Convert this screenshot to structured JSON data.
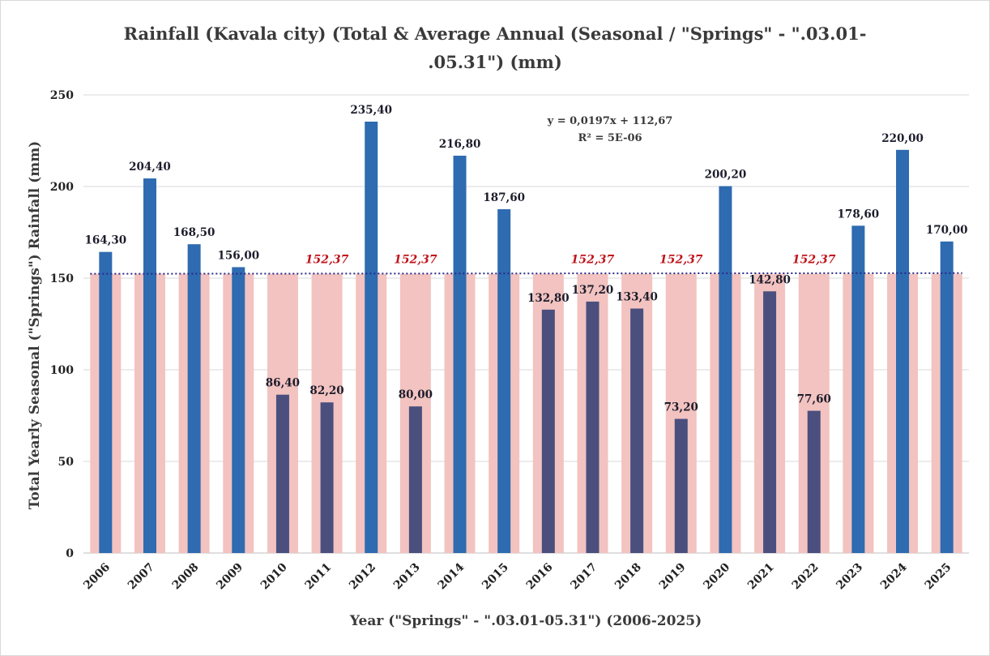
{
  "chart_data": {
    "type": "bar",
    "title_line1": "Rainfall (Kavala city) (Total & Average Annual (Seasonal / \"Springs\" - \".03.01-",
    "title_line2": ".05.31\") (mm)",
    "xlabel": "Year (\"Springs\" - \".03.01-05.31\") (2006-2025)",
    "ylabel": "Total Yearly Seasonal (\"Springs\") Rainfall (mm)",
    "ylim": [
      0,
      250
    ],
    "yticks": [
      0,
      50,
      100,
      150,
      200,
      250
    ],
    "grid": true,
    "categories": [
      "2006",
      "2007",
      "2008",
      "2009",
      "2010",
      "2011",
      "2012",
      "2013",
      "2014",
      "2015",
      "2016",
      "2017",
      "2018",
      "2019",
      "2020",
      "2021",
      "2022",
      "2023",
      "2024",
      "2025"
    ],
    "series": [
      {
        "values": [
          164.3,
          204.4,
          168.5,
          156.0,
          86.4,
          82.2,
          235.4,
          80.0,
          216.8,
          187.6,
          132.8,
          137.2,
          133.4,
          73.2,
          200.2,
          142.8,
          77.6,
          178.6,
          220.0,
          170.0
        ],
        "labels": [
          "164,30",
          "204,40",
          "168,50",
          "156,00",
          "86,40",
          "82,20",
          "235,40",
          "80,00",
          "216,80",
          "187,60",
          "132,80",
          "137,20",
          "133,40",
          "73,20",
          "200,20",
          "142,80",
          "77,60",
          "178,60",
          "220,00",
          "170,00"
        ]
      },
      {
        "values": [
          152.37,
          152.37,
          152.37,
          152.37,
          152.37,
          152.37,
          152.37,
          152.37,
          152.37,
          152.37,
          152.37,
          152.37,
          152.37,
          152.37,
          152.37,
          152.37,
          152.37,
          152.37,
          152.37,
          152.37
        ],
        "label_text": "152,37",
        "label_years": [
          "2011",
          "2013",
          "2017",
          "2019",
          "2022"
        ]
      }
    ],
    "trendline": {
      "slope": 0.0197,
      "intercept": 112.67,
      "equation": "y = 0,0197x + 112,67",
      "r2": "R² = 5E-06",
      "style": "dotted"
    },
    "colors": {
      "above_avg_bar": "#2e6bb0",
      "below_avg_bar": "#4a4f7e",
      "average_bar": "#f2c3c0",
      "trendline": "#2a2a8a",
      "grid": "#d9d9d9",
      "avg_label": "#c0141c"
    }
  }
}
